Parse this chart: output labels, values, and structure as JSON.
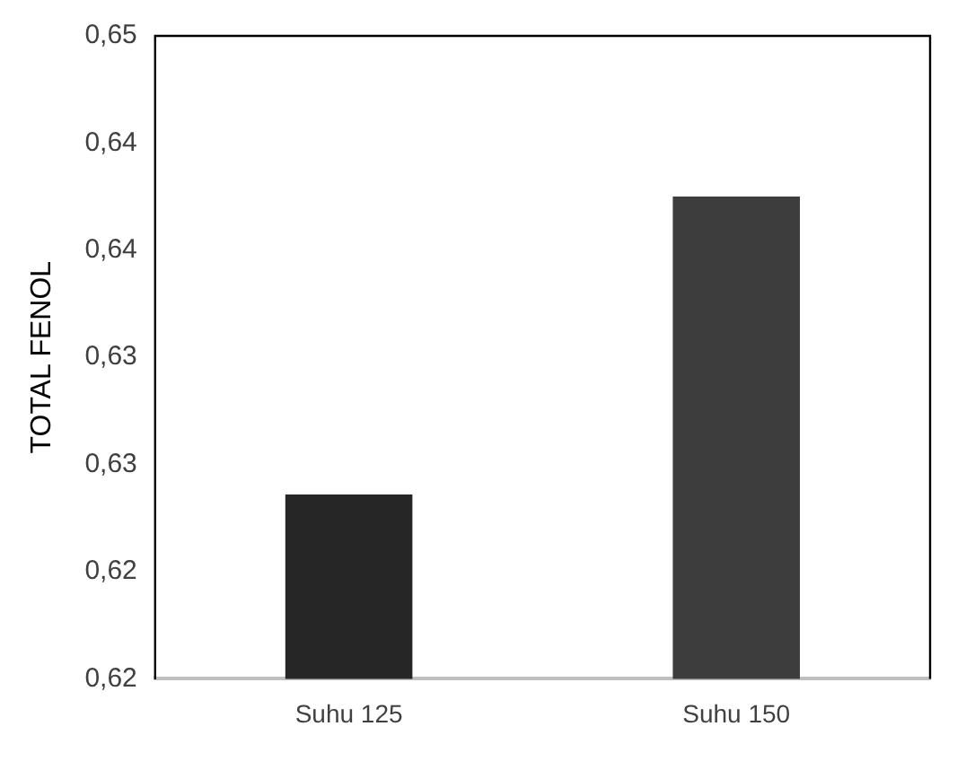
{
  "chart_data": {
    "type": "bar",
    "ylabel": "TOTAL FENOL",
    "categories": [
      "Suhu 125",
      "Suhu 150"
    ],
    "values": [
      0.6286,
      0.6425
    ],
    "colors": [
      "#262626",
      "#3d3d3d"
    ],
    "ylim": [
      0.62,
      0.65
    ],
    "yticks": [
      {
        "value": 0.62,
        "label": "0,62"
      },
      {
        "value": 0.625,
        "label": "0,62"
      },
      {
        "value": 0.63,
        "label": "0,63"
      },
      {
        "value": 0.635,
        "label": "0,63"
      },
      {
        "value": 0.64,
        "label": "0,64"
      },
      {
        "value": 0.645,
        "label": "0,64"
      },
      {
        "value": 0.65,
        "label": "0,65"
      }
    ],
    "grid": false
  }
}
